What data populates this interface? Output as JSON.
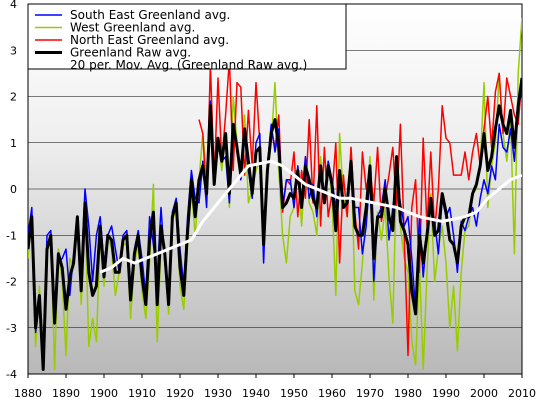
{
  "chart_data": {
    "type": "line",
    "title": "",
    "xlabel": "",
    "ylabel": "",
    "xlim": [
      1880,
      2010
    ],
    "ylim": [
      -4,
      4
    ],
    "x_ticks": [
      1880,
      1890,
      1900,
      1910,
      1920,
      1930,
      1940,
      1950,
      1960,
      1970,
      1980,
      1990,
      2000,
      2010
    ],
    "y_ticks": [
      4,
      3,
      2,
      1,
      0,
      -1,
      -2,
      -3,
      -4
    ],
    "grid": "horizontal",
    "background": "gradient grey (dark at bottom, white at top)",
    "legend_position": "top-left",
    "series": [
      {
        "name": "South East Greenland avg.",
        "color": "#0000ff",
        "width": 1.5,
        "x": [
          1880,
          1881,
          1882,
          1883,
          1884,
          1885,
          1886,
          1887,
          1888,
          1889,
          1890,
          1891,
          1892,
          1893,
          1894,
          1895,
          1896,
          1897,
          1898,
          1899,
          1900,
          1901,
          1902,
          1903,
          1904,
          1905,
          1906,
          1907,
          1908,
          1909,
          1910,
          1911,
          1912,
          1913,
          1914,
          1915,
          1916,
          1917,
          1918,
          1919,
          1920,
          1921,
          1922,
          1923,
          1924,
          1925,
          1926,
          1927,
          1928,
          1929,
          1930,
          1931,
          1932,
          1933,
          1934,
          1935,
          1936,
          1937,
          1938,
          1939,
          1940,
          1941,
          1942,
          1943,
          1944,
          1945,
          1946,
          1947,
          1948,
          1949,
          1950,
          1951,
          1952,
          1953,
          1954,
          1955,
          1956,
          1957,
          1958,
          1959,
          1960,
          1961,
          1962,
          1963,
          1964,
          1965,
          1966,
          1967,
          1968,
          1969,
          1970,
          1971,
          1972,
          1973,
          1974,
          1975,
          1976,
          1977,
          1978,
          1979,
          1980,
          1981,
          1982,
          1983,
          1984,
          1985,
          1986,
          1987,
          1988,
          1989,
          1990,
          1991,
          1992,
          1993,
          1994,
          1995,
          1996,
          1997,
          1998,
          1999,
          2000,
          2001,
          2002,
          2003,
          2004,
          2005,
          2006,
          2007,
          2008,
          2009,
          2010
        ],
        "values": [
          -1.0,
          -0.4,
          -3.1,
          -2.4,
          -3.6,
          -1.0,
          -0.9,
          -2.7,
          -1.6,
          -1.5,
          -1.3,
          -2.3,
          -1.4,
          -0.7,
          -1.8,
          0.0,
          -0.8,
          -2.0,
          -1.0,
          -0.6,
          -1.6,
          -1.0,
          -0.8,
          -1.3,
          -1.8,
          -1.0,
          -0.9,
          -2.1,
          -1.3,
          -0.9,
          -1.5,
          -2.3,
          -0.6,
          -1.2,
          -1.9,
          -0.4,
          -1.6,
          -2.4,
          -0.5,
          -0.2,
          -1.3,
          -2.1,
          -0.6,
          0.4,
          -0.2,
          -0.3,
          0.6,
          -0.4,
          1.9,
          0.2,
          1.0,
          0.6,
          0.7,
          -0.3,
          1.4,
          0.9,
          0.2,
          1.1,
          0.4,
          -0.2,
          1.0,
          1.2,
          -1.6,
          0.5,
          1.4,
          0.8,
          1.3,
          -0.4,
          0.2,
          0.2,
          -0.4,
          0.5,
          -0.3,
          0.7,
          -0.2,
          0.1,
          -0.6,
          0.4,
          -0.3,
          0.6,
          0.2,
          -0.4,
          0.3,
          -0.2,
          -0.2,
          0.6,
          -0.4,
          -0.4,
          -1.4,
          -0.8,
          0.3,
          -2.0,
          -0.6,
          -0.4,
          0.2,
          -1.1,
          -0.4,
          0.2,
          -0.3,
          -0.8,
          -0.6,
          -1.5,
          -2.6,
          -0.6,
          -1.9,
          -1.0,
          -0.4,
          -0.7,
          -1.4,
          -0.2,
          -0.6,
          -0.4,
          -1.0,
          -1.8,
          -0.7,
          -0.9,
          -0.6,
          -0.4,
          -0.8,
          -0.2,
          0.2,
          -0.1,
          0.5,
          0.2,
          1.4,
          0.9,
          0.8,
          1.3,
          0.6,
          1.8,
          2.1
        ]
      },
      {
        "name": "West Greenland avg.",
        "color": "#99cc00",
        "width": 1.5,
        "x": [
          1880,
          1881,
          1882,
          1883,
          1884,
          1885,
          1886,
          1887,
          1888,
          1889,
          1890,
          1891,
          1892,
          1893,
          1894,
          1895,
          1896,
          1897,
          1898,
          1899,
          1900,
          1901,
          1902,
          1903,
          1904,
          1905,
          1906,
          1907,
          1908,
          1909,
          1910,
          1911,
          1912,
          1913,
          1914,
          1915,
          1916,
          1917,
          1918,
          1919,
          1920,
          1921,
          1922,
          1923,
          1924,
          1925,
          1926,
          1927,
          1928,
          1929,
          1930,
          1931,
          1932,
          1933,
          1934,
          1935,
          1936,
          1937,
          1938,
          1939,
          1940,
          1941,
          1942,
          1943,
          1944,
          1945,
          1946,
          1947,
          1948,
          1949,
          1950,
          1951,
          1952,
          1953,
          1954,
          1955,
          1956,
          1957,
          1958,
          1959,
          1960,
          1961,
          1962,
          1963,
          1964,
          1965,
          1966,
          1967,
          1968,
          1969,
          1970,
          1971,
          1972,
          1973,
          1974,
          1975,
          1976,
          1977,
          1978,
          1979,
          1980,
          1981,
          1982,
          1983,
          1984,
          1985,
          1986,
          1987,
          1988,
          1989,
          1990,
          1991,
          1992,
          1993,
          1994,
          1995,
          1996,
          1997,
          1998,
          1999,
          2000,
          2001,
          2002,
          2003,
          2004,
          2005,
          2006,
          2007,
          2008,
          2009,
          2010
        ],
        "values": [
          -1.5,
          -0.6,
          -3.4,
          -2.1,
          -3.8,
          -1.4,
          -1.0,
          -3.9,
          -1.3,
          -2.0,
          -3.6,
          -1.5,
          -1.7,
          -0.6,
          -2.5,
          -0.4,
          -3.4,
          -2.8,
          -3.3,
          -1.0,
          -2.1,
          -1.0,
          -1.3,
          -2.3,
          -1.8,
          -1.2,
          -1.2,
          -2.8,
          -1.6,
          -1.2,
          -2.2,
          -2.8,
          -1.6,
          0.1,
          -3.3,
          -1.2,
          -1.2,
          -2.7,
          -0.7,
          -0.4,
          -2.1,
          -2.6,
          -1.2,
          0.0,
          -1.0,
          0.2,
          1.2,
          0.3,
          1.5,
          0.1,
          1.1,
          0.4,
          1.2,
          -0.4,
          2.0,
          1.0,
          0.3,
          1.6,
          -0.3,
          0.0,
          0.4,
          0.6,
          -1.3,
          0.3,
          1.0,
          2.3,
          0.4,
          -1.0,
          -1.6,
          -0.6,
          -0.4,
          0.5,
          -0.8,
          0.6,
          -0.3,
          -0.5,
          -1.0,
          0.7,
          -0.3,
          0.6,
          -0.2,
          -2.3,
          1.2,
          -0.2,
          -0.6,
          0.9,
          -2.2,
          -2.5,
          -1.6,
          -0.5,
          0.7,
          -2.4,
          -0.5,
          -1.1,
          -0.4,
          -1.9,
          -2.9,
          0.4,
          -0.8,
          -1.5,
          -1.8,
          -3.3,
          -3.8,
          -1.6,
          -3.9,
          -1.8,
          -0.1,
          -2.0,
          -1.3,
          -0.8,
          -1.6,
          -3.0,
          -2.1,
          -3.5,
          -1.8,
          -0.9,
          -0.8,
          -0.1,
          0.0,
          0.5,
          2.3,
          -0.4,
          0.5,
          1.0,
          2.5,
          1.2,
          0.6,
          1.5,
          -1.4,
          2.5,
          3.7
        ]
      },
      {
        "name": "North East Greenland avg.",
        "color": "#ff0000",
        "width": 1.5,
        "x": [
          1925,
          1926,
          1927,
          1928,
          1929,
          1930,
          1931,
          1932,
          1933,
          1934,
          1935,
          1936,
          1937,
          1938,
          1939,
          1940,
          1941,
          1942,
          1943,
          1944,
          1945,
          1946,
          1947,
          1948,
          1949,
          1950,
          1951,
          1952,
          1953,
          1954,
          1955,
          1956,
          1957,
          1958,
          1959,
          1960,
          1961,
          1962,
          1963,
          1964,
          1965,
          1966,
          1967,
          1968,
          1969,
          1970,
          1971,
          1972,
          1973,
          1974,
          1975,
          1976,
          1977,
          1978,
          1979,
          1980,
          1981,
          1982,
          1983,
          1984,
          1985,
          1986,
          1987,
          1988,
          1989,
          1990,
          1991,
          1992,
          1993,
          1994,
          1995,
          1996,
          1997,
          1998,
          1999,
          2000,
          2001,
          2002,
          2003,
          2004,
          2005,
          2006,
          2007,
          2008,
          2009,
          2010
        ],
        "values": [
          1.5,
          1.2,
          -0.3,
          2.7,
          0.2,
          2.4,
          0.6,
          1.6,
          2.8,
          0.4,
          2.3,
          2.2,
          0.3,
          1.7,
          0.5,
          2.3,
          1.0,
          -1.3,
          0.2,
          1.3,
          0.9,
          1.6,
          -0.5,
          0.2,
          0.1,
          0.8,
          -0.6,
          0.4,
          -0.2,
          1.5,
          -0.3,
          1.8,
          -0.8,
          0.9,
          -0.6,
          -0.1,
          1.0,
          -1.6,
          0.3,
          -0.6,
          0.9,
          -0.5,
          -1.3,
          0.8,
          0.0,
          0.4,
          -0.3,
          0.9,
          -0.7,
          -0.2,
          0.3,
          0.9,
          -0.4,
          1.4,
          -1.0,
          -3.6,
          -0.4,
          0.2,
          -1.8,
          1.1,
          -0.8,
          0.8,
          -0.9,
          0.0,
          1.8,
          1.1,
          1.0,
          0.3,
          0.3,
          0.3,
          0.8,
          0.2,
          0.8,
          1.2,
          0.5,
          1.3,
          2.0,
          0.9,
          2.1,
          2.5,
          1.2,
          2.4,
          2.0,
          1.6,
          1.4,
          2.4
        ]
      },
      {
        "name": "Greenland Raw avg.",
        "color": "#000000",
        "width": 3,
        "x": [
          1880,
          1881,
          1882,
          1883,
          1884,
          1885,
          1886,
          1887,
          1888,
          1889,
          1890,
          1891,
          1892,
          1893,
          1894,
          1895,
          1896,
          1897,
          1898,
          1899,
          1900,
          1901,
          1902,
          1903,
          1904,
          1905,
          1906,
          1907,
          1908,
          1909,
          1910,
          1911,
          1912,
          1913,
          1914,
          1915,
          1916,
          1917,
          1918,
          1919,
          1920,
          1921,
          1922,
          1923,
          1924,
          1925,
          1926,
          1927,
          1928,
          1929,
          1930,
          1931,
          1932,
          1933,
          1934,
          1935,
          1936,
          1937,
          1938,
          1939,
          1940,
          1941,
          1942,
          1943,
          1944,
          1945,
          1946,
          1947,
          1948,
          1949,
          1950,
          1951,
          1952,
          1953,
          1954,
          1955,
          1956,
          1957,
          1958,
          1959,
          1960,
          1961,
          1962,
          1963,
          1964,
          1965,
          1966,
          1967,
          1968,
          1969,
          1970,
          1971,
          1972,
          1973,
          1974,
          1975,
          1976,
          1977,
          1978,
          1979,
          1980,
          1981,
          1982,
          1983,
          1984,
          1985,
          1986,
          1987,
          1988,
          1989,
          1990,
          1991,
          1992,
          1993,
          1994,
          1995,
          1996,
          1997,
          1998,
          1999,
          2000,
          2001,
          2002,
          2003,
          2004,
          2005,
          2006,
          2007,
          2008,
          2009,
          2010
        ],
        "values": [
          -1.3,
          -0.6,
          -3.0,
          -2.3,
          -3.9,
          -1.3,
          -1.0,
          -2.9,
          -1.4,
          -1.7,
          -2.6,
          -1.9,
          -1.6,
          -0.6,
          -2.2,
          -0.3,
          -1.8,
          -2.3,
          -2.1,
          -0.8,
          -1.9,
          -1.0,
          -1.1,
          -1.8,
          -1.8,
          -1.1,
          -1.0,
          -2.4,
          -1.4,
          -1.0,
          -1.9,
          -2.5,
          -1.1,
          -0.5,
          -2.5,
          -0.8,
          -1.4,
          -2.5,
          -0.6,
          -0.3,
          -1.7,
          -2.3,
          -0.9,
          0.2,
          -0.6,
          0.2,
          0.5,
          -0.1,
          1.8,
          0.1,
          1.1,
          0.6,
          1.2,
          -0.1,
          1.4,
          0.9,
          0.3,
          1.3,
          0.6,
          -0.1,
          0.8,
          0.9,
          -1.2,
          0.4,
          1.2,
          1.5,
          0.9,
          -0.4,
          -0.3,
          -0.1,
          -0.2,
          0.4,
          -0.4,
          0.5,
          0.2,
          -0.2,
          -0.4,
          0.5,
          -0.3,
          0.5,
          0.1,
          -0.9,
          0.4,
          -0.4,
          -0.3,
          0.6,
          -0.8,
          -1.0,
          -1.0,
          -0.4,
          0.5,
          -1.5,
          -0.6,
          -0.6,
          0.0,
          -0.6,
          -0.9,
          0.7,
          -0.7,
          -0.9,
          -1.2,
          -2.2,
          -2.7,
          -1.0,
          -1.6,
          -1.0,
          -0.2,
          -1.0,
          -0.9,
          -0.1,
          -0.5,
          -1.1,
          -1.2,
          -1.6,
          -0.8,
          -0.6,
          -0.6,
          -0.1,
          0.1,
          0.5,
          1.2,
          0.4,
          0.7,
          1.3,
          1.8,
          1.4,
          1.2,
          1.7,
          0.9,
          1.8,
          2.4
        ]
      },
      {
        "name": "20 per. Mov. Avg. (Greenland Raw avg.)",
        "color": "#ffffff",
        "width": 3,
        "x": [
          1899,
          1902,
          1905,
          1908,
          1911,
          1914,
          1917,
          1920,
          1923,
          1926,
          1929,
          1932,
          1935,
          1938,
          1941,
          1944,
          1947,
          1950,
          1953,
          1956,
          1959,
          1962,
          1965,
          1968,
          1971,
          1974,
          1977,
          1980,
          1983,
          1986,
          1989,
          1992,
          1995,
          1998,
          2001,
          2004,
          2007,
          2010
        ],
        "values": [
          -1.8,
          -1.7,
          -1.5,
          -1.6,
          -1.5,
          -1.4,
          -1.3,
          -1.2,
          -1.1,
          -0.7,
          -0.4,
          -0.1,
          0.2,
          0.5,
          0.55,
          0.6,
          0.5,
          0.3,
          0.1,
          0.0,
          -0.1,
          -0.2,
          -0.2,
          -0.25,
          -0.3,
          -0.35,
          -0.4,
          -0.5,
          -0.6,
          -0.65,
          -0.7,
          -0.65,
          -0.6,
          -0.5,
          -0.2,
          0.0,
          0.2,
          0.3
        ]
      }
    ]
  }
}
